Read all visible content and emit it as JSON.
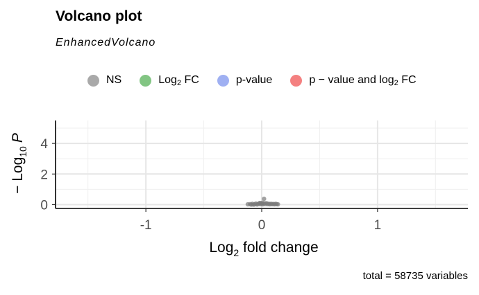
{
  "chart_data": {
    "type": "scatter",
    "title": "Volcano plot",
    "subtitle": "EnhancedVolcano",
    "caption": "total = 58735 variables",
    "xlabel_main": "Log",
    "xlabel_sub": "2",
    "xlabel_tail": " fold change",
    "ylabel_main": "− Log",
    "ylabel_sub": "10",
    "ylabel_tail": "P",
    "xlim": [
      -1.78,
      1.78
    ],
    "ylim": [
      -0.25,
      5.5
    ],
    "x_ticks": [
      -1,
      0,
      1
    ],
    "x_tick_labels": [
      "-1",
      "0",
      "1"
    ],
    "y_ticks": [
      0,
      2,
      4
    ],
    "y_tick_labels": [
      "0",
      "2",
      "4"
    ],
    "grid": true,
    "legend_position": "top",
    "legend": [
      {
        "name": "NS",
        "color": "#8c8c8c"
      },
      {
        "name_main": "Log",
        "name_sub": "2",
        "name_tail": " FC",
        "color": "#58b25a"
      },
      {
        "name": "p-value",
        "color": "#7f96ee"
      },
      {
        "name_main": "p − value and log",
        "name_sub": "2",
        "name_tail": " FC",
        "color": "#f05555"
      }
    ],
    "series": [
      {
        "color": "#7a7a7a",
        "points": [
          {
            "x": -0.12,
            "y": 0.02
          },
          {
            "x": -0.1,
            "y": 0.03
          },
          {
            "x": -0.08,
            "y": 0.05
          },
          {
            "x": -0.06,
            "y": 0.02
          },
          {
            "x": -0.05,
            "y": 0.07
          },
          {
            "x": -0.04,
            "y": 0.01
          },
          {
            "x": -0.03,
            "y": 0.04
          },
          {
            "x": -0.02,
            "y": 0.09
          },
          {
            "x": -0.01,
            "y": 0.03
          },
          {
            "x": 0.0,
            "y": 0.06
          },
          {
            "x": 0.01,
            "y": 0.02
          },
          {
            "x": 0.02,
            "y": 0.08
          },
          {
            "x": 0.03,
            "y": 0.04
          },
          {
            "x": 0.04,
            "y": 0.1
          },
          {
            "x": 0.05,
            "y": 0.03
          },
          {
            "x": 0.06,
            "y": 0.06
          },
          {
            "x": 0.07,
            "y": 0.02
          },
          {
            "x": 0.08,
            "y": 0.05
          },
          {
            "x": 0.09,
            "y": 0.03
          },
          {
            "x": 0.1,
            "y": 0.04
          },
          {
            "x": 0.11,
            "y": 0.02
          },
          {
            "x": 0.12,
            "y": 0.05
          },
          {
            "x": 0.13,
            "y": 0.03
          },
          {
            "x": 0.14,
            "y": 0.02
          },
          {
            "x": -0.09,
            "y": 0.0
          },
          {
            "x": -0.07,
            "y": 0.0
          },
          {
            "x": 0.005,
            "y": 0.12
          },
          {
            "x": -0.015,
            "y": 0.11
          },
          {
            "x": 0.02,
            "y": 0.38
          }
        ]
      }
    ]
  }
}
